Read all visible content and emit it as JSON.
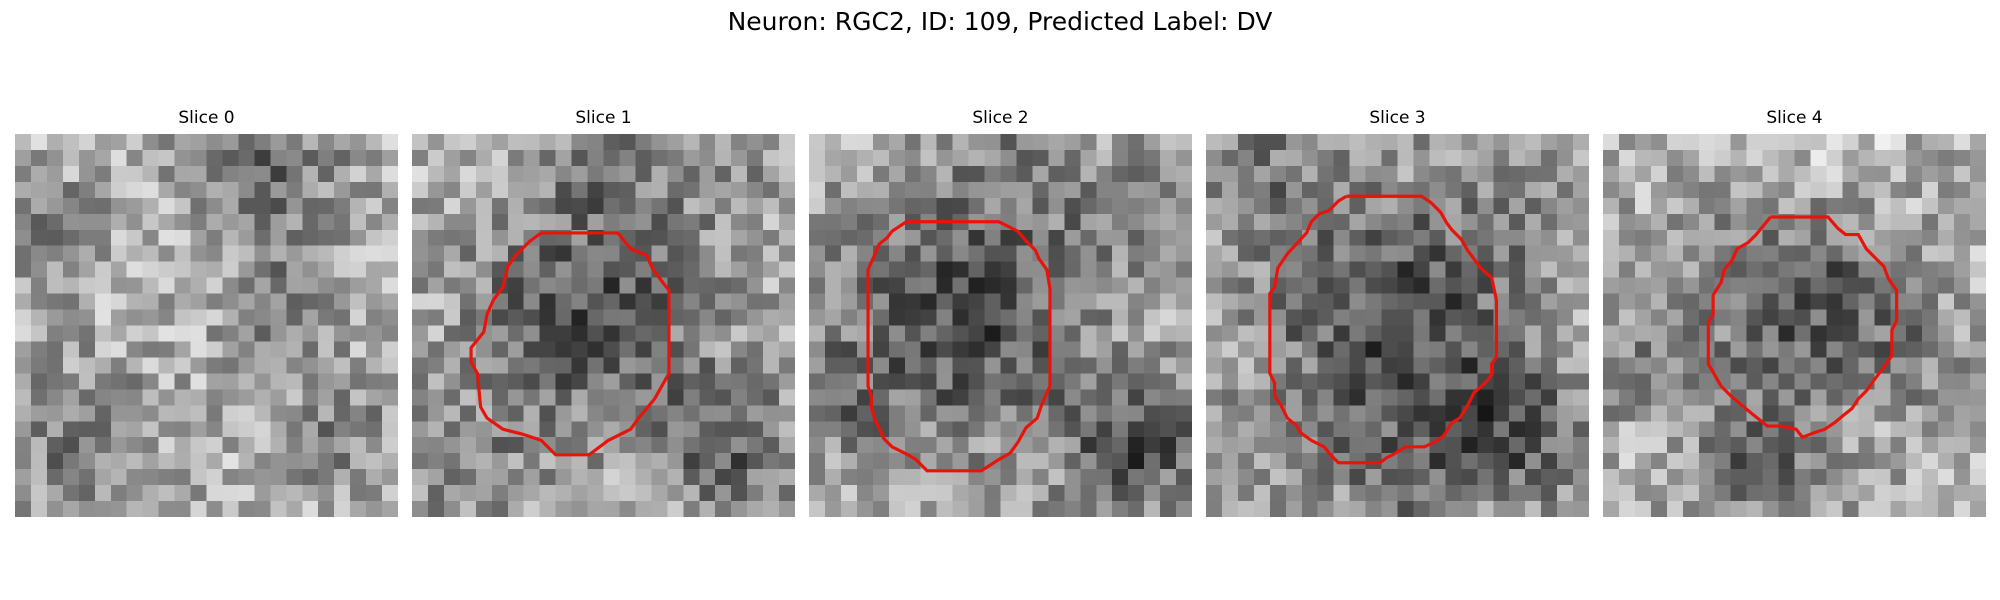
{
  "figure": {
    "title": "Neuron: RGC2, ID: 109, Predicted Label: DV",
    "contour_color": "#e8140c",
    "colormap": "gray",
    "slices": [
      {
        "label": "Slice 0",
        "has_contour": false,
        "contour": []
      },
      {
        "label": "Slice 1",
        "has_contour": true,
        "contour": [
          [
            8.1,
            6.2
          ],
          [
            12.9,
            6.2
          ],
          [
            13.7,
            7.2
          ],
          [
            14.7,
            7.6
          ],
          [
            15.1,
            8.5
          ],
          [
            16.1,
            9.8
          ],
          [
            16.1,
            15.0
          ],
          [
            15.2,
            16.6
          ],
          [
            14.2,
            17.8
          ],
          [
            13.7,
            18.5
          ],
          [
            12.3,
            19.2
          ],
          [
            11.1,
            20.1
          ],
          [
            9.0,
            20.1
          ],
          [
            8.1,
            19.2
          ],
          [
            6.9,
            18.8
          ],
          [
            5.7,
            18.5
          ],
          [
            4.7,
            17.8
          ],
          [
            4.3,
            17.1
          ],
          [
            4.1,
            15.0
          ],
          [
            3.7,
            14.3
          ],
          [
            3.7,
            13.4
          ],
          [
            4.5,
            12.4
          ],
          [
            4.7,
            11.3
          ],
          [
            5.1,
            10.4
          ],
          [
            5.7,
            9.6
          ],
          [
            6.0,
            8.3
          ],
          [
            6.5,
            7.6
          ],
          [
            7.4,
            6.7
          ],
          [
            8.1,
            6.2
          ]
        ]
      },
      {
        "label": "Slice 2",
        "has_contour": true,
        "contour": [
          [
            7.1,
            5.5
          ],
          [
            11.9,
            5.5
          ],
          [
            13.1,
            6.1
          ],
          [
            13.6,
            6.7
          ],
          [
            14.2,
            7.3
          ],
          [
            14.4,
            7.8
          ],
          [
            14.9,
            8.5
          ],
          [
            15.1,
            9.7
          ],
          [
            15.1,
            15.8
          ],
          [
            14.6,
            16.9
          ],
          [
            14.3,
            17.8
          ],
          [
            13.6,
            18.4
          ],
          [
            13.1,
            19.3
          ],
          [
            12.6,
            20.0
          ],
          [
            11.9,
            20.4
          ],
          [
            10.8,
            21.1
          ],
          [
            7.4,
            21.1
          ],
          [
            6.7,
            20.4
          ],
          [
            6.2,
            20.1
          ],
          [
            5.2,
            19.6
          ],
          [
            4.7,
            19.1
          ],
          [
            4.1,
            17.8
          ],
          [
            3.9,
            17.1
          ],
          [
            3.9,
            16.4
          ],
          [
            3.7,
            15.8
          ],
          [
            3.7,
            8.5
          ],
          [
            4.1,
            7.6
          ],
          [
            4.4,
            6.9
          ],
          [
            4.9,
            6.5
          ],
          [
            5.2,
            6.1
          ],
          [
            6.1,
            5.5
          ],
          [
            7.1,
            5.5
          ]
        ]
      },
      {
        "label": "Slice 3",
        "has_contour": true,
        "contour": [
          [
            8.8,
            3.9
          ],
          [
            13.5,
            3.9
          ],
          [
            14.1,
            4.3
          ],
          [
            14.7,
            4.9
          ],
          [
            15.1,
            5.6
          ],
          [
            15.4,
            6.0
          ],
          [
            16.0,
            6.6
          ],
          [
            16.4,
            7.3
          ],
          [
            16.7,
            7.7
          ],
          [
            17.2,
            8.4
          ],
          [
            17.9,
            9.0
          ],
          [
            18.2,
            10.4
          ],
          [
            18.2,
            14.0
          ],
          [
            17.9,
            14.4
          ],
          [
            17.9,
            15.1
          ],
          [
            17.5,
            15.6
          ],
          [
            16.8,
            16.2
          ],
          [
            16.4,
            17.0
          ],
          [
            15.9,
            17.8
          ],
          [
            15.4,
            18.1
          ],
          [
            14.9,
            18.9
          ],
          [
            14.5,
            19.2
          ],
          [
            13.7,
            19.6
          ],
          [
            12.5,
            19.6
          ],
          [
            11.7,
            20.1
          ],
          [
            11.3,
            20.3
          ],
          [
            10.9,
            20.6
          ],
          [
            8.3,
            20.6
          ],
          [
            7.8,
            20.1
          ],
          [
            7.4,
            19.6
          ],
          [
            6.6,
            19.2
          ],
          [
            5.9,
            18.7
          ],
          [
            5.7,
            18.3
          ],
          [
            5.1,
            17.8
          ],
          [
            4.7,
            17.0
          ],
          [
            4.3,
            16.4
          ],
          [
            4.3,
            15.6
          ],
          [
            4.0,
            15.0
          ],
          [
            4.0,
            10.0
          ],
          [
            4.3,
            9.6
          ],
          [
            4.5,
            8.4
          ],
          [
            5.1,
            7.5
          ],
          [
            6.3,
            6.2
          ],
          [
            6.6,
            5.5
          ],
          [
            7.1,
            5.0
          ],
          [
            7.7,
            4.8
          ],
          [
            8.3,
            4.2
          ],
          [
            8.8,
            3.9
          ]
        ]
      },
      {
        "label": "Slice 4",
        "has_contour": true,
        "contour": [
          [
            10.5,
            5.2
          ],
          [
            14.1,
            5.2
          ],
          [
            14.7,
            5.9
          ],
          [
            15.2,
            6.3
          ],
          [
            16.0,
            6.3
          ],
          [
            16.5,
            7.2
          ],
          [
            17.2,
            7.9
          ],
          [
            17.6,
            8.3
          ],
          [
            17.9,
            9.1
          ],
          [
            18.4,
            9.8
          ],
          [
            18.4,
            11.7
          ],
          [
            18.1,
            12.3
          ],
          [
            18.1,
            13.9
          ],
          [
            17.6,
            14.6
          ],
          [
            17.0,
            15.4
          ],
          [
            16.5,
            16.1
          ],
          [
            16.0,
            16.6
          ],
          [
            15.6,
            17.2
          ],
          [
            15.1,
            17.6
          ],
          [
            14.5,
            18.1
          ],
          [
            13.9,
            18.5
          ],
          [
            13.3,
            18.7
          ],
          [
            12.5,
            19.0
          ],
          [
            12.1,
            18.5
          ],
          [
            11.2,
            18.3
          ],
          [
            10.3,
            18.3
          ],
          [
            9.8,
            17.9
          ],
          [
            9.3,
            17.5
          ],
          [
            8.7,
            17.0
          ],
          [
            8.0,
            16.4
          ],
          [
            7.4,
            15.8
          ],
          [
            7.0,
            15.1
          ],
          [
            6.6,
            14.4
          ],
          [
            6.6,
            11.8
          ],
          [
            6.9,
            11.3
          ],
          [
            6.9,
            10.1
          ],
          [
            7.4,
            9.3
          ],
          [
            7.6,
            8.5
          ],
          [
            8.1,
            7.9
          ],
          [
            8.4,
            7.2
          ],
          [
            9.1,
            6.8
          ],
          [
            9.6,
            6.3
          ],
          [
            10.5,
            5.2
          ]
        ]
      }
    ]
  }
}
